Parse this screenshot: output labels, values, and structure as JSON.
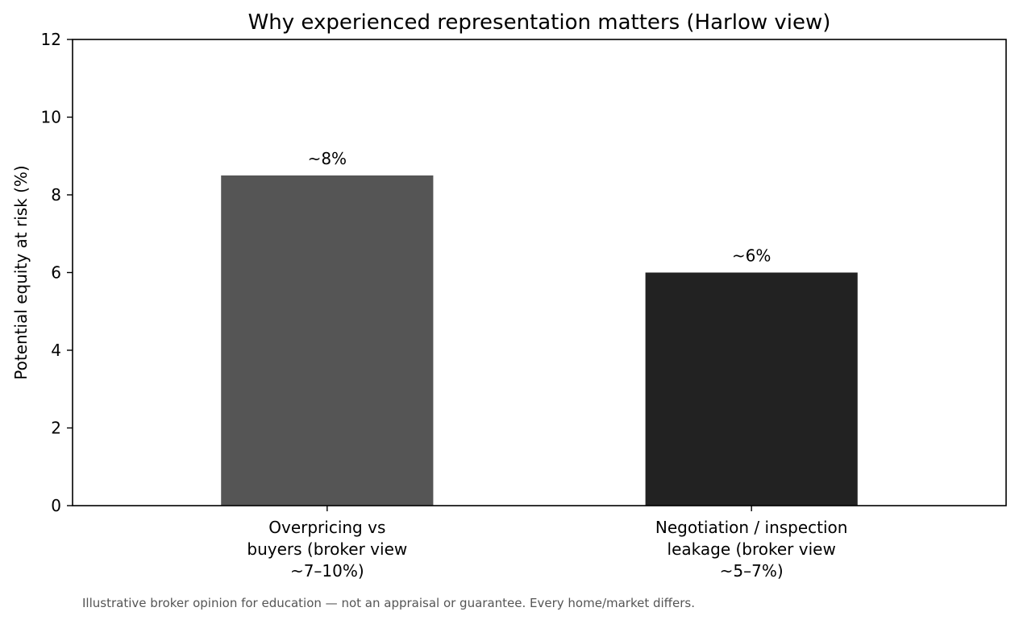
{
  "chart_data": {
    "type": "bar",
    "title": "Why experienced representation matters (Harlow view)",
    "xlabel": "",
    "ylabel": "Potential equity at risk (%)",
    "ylim": [
      0,
      12
    ],
    "yticks": [
      0,
      2,
      4,
      6,
      8,
      10,
      12
    ],
    "categories": [
      [
        "Overpricing vs",
        "buyers (broker view",
        "~7–10%)"
      ],
      [
        "Negotiation / inspection",
        "leakage (broker view",
        "~5–7%)"
      ]
    ],
    "values": [
      8.5,
      6.0
    ],
    "data_labels": [
      "~8%",
      "~6%"
    ],
    "bar_colors": [
      "#555555",
      "#222222"
    ],
    "grid": false,
    "legend": "none"
  },
  "footnote": "Illustrative broker opinion for education — not an appraisal or guarantee. Every home/market differs."
}
